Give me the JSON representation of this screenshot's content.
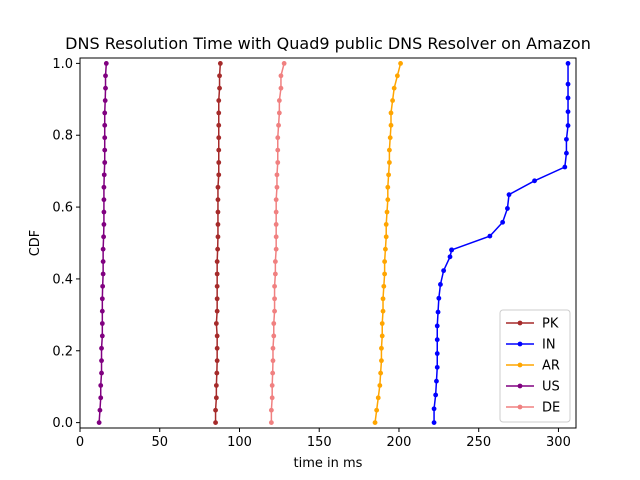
{
  "chart_data": {
    "type": "line",
    "title": "DNS Resolution Time with Quad9 public DNS Resolver on Amazon",
    "xlabel": "time in ms",
    "ylabel": "CDF",
    "xlim": [
      0,
      311
    ],
    "ylim": [
      -0.015,
      1.015
    ],
    "xticks": [
      0,
      50,
      100,
      150,
      200,
      250,
      300
    ],
    "yticks": [
      0.0,
      0.2,
      0.4,
      0.6,
      0.8,
      1.0
    ],
    "grid": false,
    "legend_position": "lower-right",
    "series": [
      {
        "name": "PK",
        "color": "#a52a2a",
        "x": [
          85,
          85,
          85.5,
          85.5,
          85.8,
          86,
          86,
          86,
          85.5,
          86,
          86,
          86,
          86,
          86,
          86.3,
          86.5,
          86.5,
          86.5,
          86.5,
          86.5,
          87,
          87,
          87,
          87,
          87,
          87,
          87,
          87.5,
          87.5,
          88
        ],
        "y": [
          0.0,
          0.0345,
          0.069,
          0.1034,
          0.1379,
          0.1724,
          0.2069,
          0.2414,
          0.2759,
          0.3103,
          0.3448,
          0.3793,
          0.4138,
          0.4483,
          0.4828,
          0.5172,
          0.5517,
          0.5862,
          0.6207,
          0.6552,
          0.6897,
          0.7241,
          0.7586,
          0.7931,
          0.8276,
          0.8621,
          0.8966,
          0.931,
          0.9655,
          1.0
        ]
      },
      {
        "name": "IN",
        "color": "#0000ff",
        "x": [
          222,
          222,
          223,
          223.5,
          224,
          224,
          224,
          224,
          224.5,
          225,
          226,
          228,
          232,
          233,
          233,
          257,
          265,
          268,
          269,
          285,
          304,
          305,
          305,
          306,
          306,
          306,
          306,
          306
        ],
        "y": [
          0.0,
          0.0385,
          0.0769,
          0.1154,
          0.1538,
          0.1923,
          0.2308,
          0.2692,
          0.3077,
          0.3462,
          0.3846,
          0.4231,
          0.4615,
          0.4808,
          0.4808,
          0.5192,
          0.5577,
          0.5962,
          0.6346,
          0.6731,
          0.7115,
          0.75,
          0.7885,
          0.8269,
          0.8654,
          0.9038,
          0.9423,
          1.0
        ]
      },
      {
        "name": "AR",
        "color": "#ffa500",
        "x": [
          185,
          186,
          187,
          188,
          188.5,
          189,
          189,
          189.5,
          189.5,
          190,
          190,
          190.5,
          191,
          191,
          191.5,
          192,
          192,
          192.5,
          193,
          193,
          193.5,
          194,
          194,
          194.5,
          195,
          195,
          196,
          197,
          199,
          201
        ],
        "y": [
          0.0,
          0.0345,
          0.069,
          0.1034,
          0.1379,
          0.1724,
          0.2069,
          0.2414,
          0.2759,
          0.3103,
          0.3448,
          0.3793,
          0.4138,
          0.4483,
          0.4828,
          0.5172,
          0.5517,
          0.5862,
          0.6207,
          0.6552,
          0.6897,
          0.7241,
          0.7586,
          0.7931,
          0.8276,
          0.8621,
          0.8966,
          0.931,
          0.9655,
          1.0
        ]
      },
      {
        "name": "US",
        "color": "#800080",
        "x": [
          12,
          12.5,
          13,
          13,
          13.5,
          13.5,
          13.5,
          14,
          14,
          14,
          14,
          14.2,
          14.5,
          14.5,
          14.5,
          14.8,
          15,
          15,
          15,
          15,
          15.2,
          15.5,
          15.5,
          15.5,
          15.5,
          15.5,
          15.8,
          16,
          16,
          16.5
        ],
        "y": [
          0.0,
          0.0345,
          0.069,
          0.1034,
          0.1379,
          0.1724,
          0.2069,
          0.2414,
          0.2759,
          0.3103,
          0.3448,
          0.3793,
          0.4138,
          0.4483,
          0.4828,
          0.5172,
          0.5517,
          0.5862,
          0.6207,
          0.6552,
          0.6897,
          0.7241,
          0.7586,
          0.7931,
          0.8276,
          0.8621,
          0.8966,
          0.931,
          0.9655,
          1.0
        ]
      },
      {
        "name": "DE",
        "color": "#f08080",
        "x": [
          120,
          120,
          120.5,
          120.5,
          120.8,
          121,
          121,
          121.5,
          121.5,
          122,
          122,
          122,
          122.5,
          122.5,
          123,
          123,
          123,
          123,
          123,
          123.5,
          123.5,
          124,
          124,
          124,
          124.5,
          125,
          125,
          126,
          126,
          128
        ],
        "y": [
          0.0,
          0.0345,
          0.069,
          0.1034,
          0.1379,
          0.1724,
          0.2069,
          0.2414,
          0.2759,
          0.3103,
          0.3448,
          0.3793,
          0.4138,
          0.4483,
          0.4828,
          0.5172,
          0.5517,
          0.5862,
          0.6207,
          0.6552,
          0.6897,
          0.7241,
          0.7586,
          0.7931,
          0.8276,
          0.8621,
          0.8966,
          0.931,
          0.9655,
          1.0
        ]
      }
    ]
  }
}
